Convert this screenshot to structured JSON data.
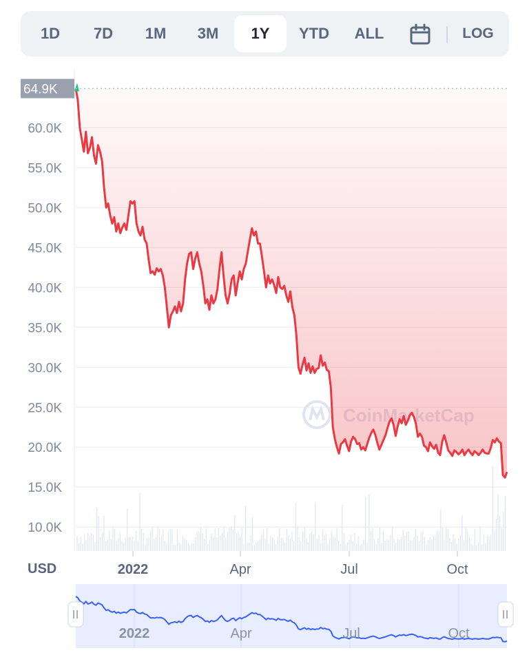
{
  "toolbar": {
    "ranges": [
      "1D",
      "7D",
      "1M",
      "3M",
      "1Y",
      "YTD",
      "ALL"
    ],
    "active": "1Y",
    "log_label": "LOG",
    "calendar_icon": "calendar-icon"
  },
  "currency_label": "USD",
  "watermark": "CoinMarketCap",
  "colors": {
    "line": "#ea3943",
    "area_top": "#ea3943",
    "current_marker": "#16c784",
    "navigator_line": "#3861fb",
    "navigator_bg": "#e8edff"
  },
  "chart_data": {
    "type": "line",
    "title": "",
    "xlabel": "",
    "ylabel": "",
    "y_ticks": [
      "10.0K",
      "15.0K",
      "20.0K",
      "25.0K",
      "30.0K",
      "35.0K",
      "40.0K",
      "45.0K",
      "50.0K",
      "55.0K",
      "60.0K"
    ],
    "x_ticks": [
      "2022",
      "Apr",
      "Jul",
      "Oct"
    ],
    "ylim": [
      7000,
      66500
    ],
    "max_label": "64.9K",
    "grid": true,
    "series": [
      {
        "values": [
          64900,
          63500,
          60000,
          58500,
          57000,
          59500,
          56800,
          57500,
          58800,
          56500,
          55500,
          57800,
          57000,
          55800,
          52500,
          50000,
          50500,
          49000,
          48000,
          48800,
          47000,
          48000,
          46800,
          47500,
          48000,
          47200,
          49000,
          50800,
          50500,
          50800,
          48000,
          47000,
          46500,
          47600,
          46000,
          45500,
          43500,
          41800,
          42000,
          41600,
          42400,
          42000,
          42300,
          41500,
          40000,
          37500,
          35000,
          36500,
          37000,
          37600,
          36800,
          38200,
          37000,
          38000,
          41000,
          43000,
          44200,
          44400,
          42300,
          43600,
          44400,
          43000,
          42000,
          40200,
          38000,
          38500,
          37200,
          39000,
          38000,
          38500,
          39800,
          42300,
          44400,
          41500,
          39000,
          38000,
          39200,
          41000,
          41500,
          39000,
          40600,
          42000,
          41000,
          42300,
          43000,
          44500,
          46000,
          47400,
          46500,
          47000,
          45500,
          45500,
          43800,
          42000,
          40000,
          41500,
          40500,
          41000,
          40300,
          39300,
          41300,
          40000,
          39800,
          40200,
          39000,
          38200,
          39500,
          37500,
          36500,
          34000,
          30000,
          29200,
          30300,
          31200,
          29600,
          30500,
          29300,
          30100,
          29300,
          29800,
          29900,
          31500,
          30200,
          30600,
          29700,
          29500,
          27500,
          22500,
          21000,
          20000,
          19200,
          20400,
          20600,
          21000,
          20200,
          19500,
          20700,
          21300,
          21000,
          20400,
          20500,
          19700,
          20000,
          19600,
          20400,
          21200,
          21800,
          22200,
          21500,
          20500,
          19700,
          20300,
          20900,
          21500,
          22400,
          23200,
          23600,
          22800,
          21400,
          22600,
          23500,
          23000,
          23900,
          22800,
          23300,
          24000,
          24300,
          23800,
          23000,
          21300,
          21700,
          21300,
          20200,
          20000,
          19500,
          20600,
          20100,
          19800,
          20300,
          19300,
          19000,
          20700,
          21500,
          20600,
          19600,
          19300,
          18900,
          19600,
          19400,
          19100,
          19300,
          19700,
          19000,
          19400,
          19700,
          19300,
          19000,
          19500,
          19300,
          19000,
          19300,
          19700,
          19300,
          19200,
          19200,
          19900,
          20900,
          20600,
          21100,
          20700,
          20500,
          16500,
          16200,
          16900
        ]
      }
    ]
  }
}
